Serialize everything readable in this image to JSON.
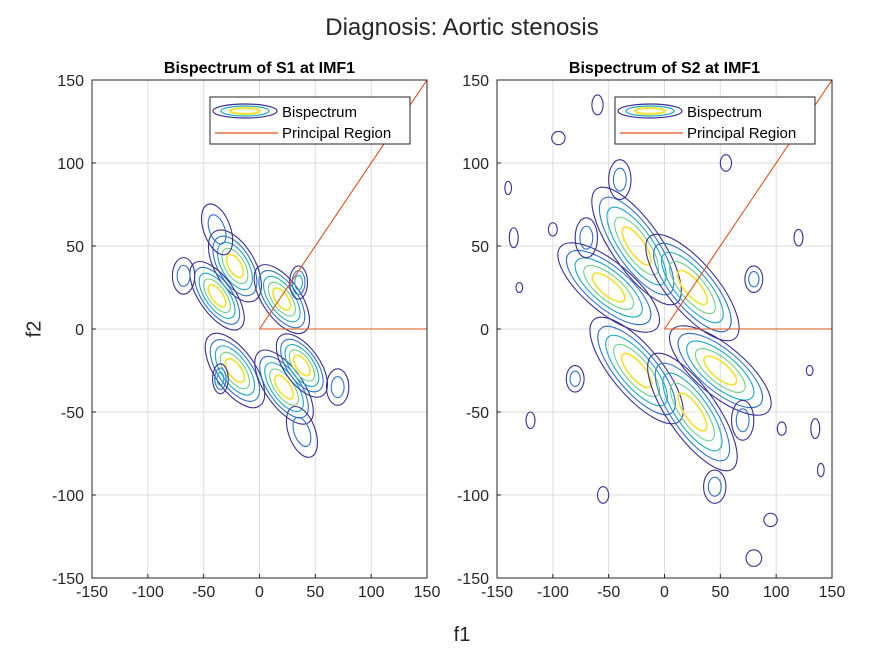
{
  "figure": {
    "suptitle": "Diagnosis: Aortic stenosis",
    "xlabel": "f1",
    "ylabel": "f2"
  },
  "colors": {
    "contour_levels": [
      "#3b2e95",
      "#2f73c7",
      "#19a8c4",
      "#6cd086",
      "#f4e23b"
    ],
    "principal_region": "#d95319",
    "grid": "#dcdcdc",
    "axis": "#262626"
  },
  "chart_data": [
    {
      "type": "contour",
      "title": "Bispectrum of S1 at IMF1",
      "xlim": [
        -150,
        150
      ],
      "ylim": [
        -150,
        150
      ],
      "xticks": [
        -150,
        -100,
        -50,
        0,
        50,
        100,
        150
      ],
      "yticks": [
        -150,
        -100,
        -50,
        0,
        50,
        100,
        150
      ],
      "grid": true,
      "legend": {
        "location": "top-right",
        "entries": [
          "Bispectrum",
          "Principal Region"
        ]
      },
      "principal_region": {
        "diagonal": [
          [
            0,
            0
          ],
          [
            150,
            150
          ]
        ],
        "horizontal": [
          [
            0,
            0
          ],
          [
            150,
            0
          ]
        ]
      },
      "blobs": [
        {
          "x": -22,
          "y": 38,
          "rx": 18,
          "ry": 24,
          "rot": -30,
          "levels": 5
        },
        {
          "x": -38,
          "y": 20,
          "rx": 16,
          "ry": 24,
          "rot": -35,
          "levels": 5
        },
        {
          "x": 20,
          "y": 18,
          "rx": 17,
          "ry": 24,
          "rot": -35,
          "levels": 5
        },
        {
          "x": 35,
          "y": 28,
          "rx": 8,
          "ry": 10,
          "rot": 0,
          "levels": 3
        },
        {
          "x": -22,
          "y": -25,
          "rx": 18,
          "ry": 26,
          "rot": -35,
          "levels": 5
        },
        {
          "x": 22,
          "y": -35,
          "rx": 17,
          "ry": 26,
          "rot": -35,
          "levels": 5
        },
        {
          "x": 38,
          "y": -22,
          "rx": 16,
          "ry": 22,
          "rot": -35,
          "levels": 5
        },
        {
          "x": -35,
          "y": -30,
          "rx": 7,
          "ry": 9,
          "rot": 0,
          "levels": 3
        },
        {
          "x": -38,
          "y": 60,
          "rx": 12,
          "ry": 16,
          "rot": -20,
          "levels": 2
        },
        {
          "x": 38,
          "y": -62,
          "rx": 12,
          "ry": 16,
          "rot": -20,
          "levels": 2
        },
        {
          "x": -68,
          "y": 32,
          "rx": 10,
          "ry": 11,
          "rot": 0,
          "levels": 2
        },
        {
          "x": 70,
          "y": -35,
          "rx": 10,
          "ry": 11,
          "rot": 0,
          "levels": 2
        }
      ]
    },
    {
      "type": "contour",
      "title": "Bispectrum of S2 at IMF1",
      "xlim": [
        -150,
        150
      ],
      "ylim": [
        -150,
        150
      ],
      "xticks": [
        -150,
        -100,
        -50,
        0,
        50,
        100,
        150
      ],
      "yticks": [
        -150,
        -100,
        -50,
        0,
        50,
        100,
        150
      ],
      "grid": true,
      "legend": {
        "location": "top-right",
        "entries": [
          "Bispectrum",
          "Principal Region"
        ]
      },
      "principal_region": {
        "diagonal": [
          [
            0,
            0
          ],
          [
            150,
            150
          ]
        ],
        "horizontal": [
          [
            0,
            0
          ],
          [
            150,
            0
          ]
        ]
      },
      "blobs": [
        {
          "x": -25,
          "y": 50,
          "rx": 22,
          "ry": 42,
          "rot": -35,
          "levels": 5
        },
        {
          "x": -50,
          "y": 25,
          "rx": 22,
          "ry": 38,
          "rot": -50,
          "levels": 5
        },
        {
          "x": 25,
          "y": 25,
          "rx": 22,
          "ry": 40,
          "rot": -40,
          "levels": 5
        },
        {
          "x": -25,
          "y": -25,
          "rx": 22,
          "ry": 40,
          "rot": -40,
          "levels": 5
        },
        {
          "x": 50,
          "y": -25,
          "rx": 22,
          "ry": 38,
          "rot": -50,
          "levels": 5
        },
        {
          "x": 25,
          "y": -50,
          "rx": 22,
          "ry": 42,
          "rot": -35,
          "levels": 5
        },
        {
          "x": -70,
          "y": 55,
          "rx": 10,
          "ry": 12,
          "rot": 0,
          "levels": 2
        },
        {
          "x": 70,
          "y": -55,
          "rx": 10,
          "ry": 12,
          "rot": 0,
          "levels": 2
        },
        {
          "x": -40,
          "y": 90,
          "rx": 10,
          "ry": 12,
          "rot": 0,
          "levels": 2
        },
        {
          "x": 45,
          "y": -95,
          "rx": 10,
          "ry": 10,
          "rot": 0,
          "levels": 2
        },
        {
          "x": -80,
          "y": -30,
          "rx": 8,
          "ry": 8,
          "rot": 0,
          "levels": 2
        },
        {
          "x": 80,
          "y": 30,
          "rx": 8,
          "ry": 8,
          "rot": 0,
          "levels": 2
        },
        {
          "x": -135,
          "y": 55,
          "rx": 4,
          "ry": 6,
          "rot": 0,
          "levels": 1
        },
        {
          "x": 135,
          "y": -60,
          "rx": 4,
          "ry": 6,
          "rot": 0,
          "levels": 1
        },
        {
          "x": -140,
          "y": 85,
          "rx": 3,
          "ry": 4,
          "rot": 0,
          "levels": 1
        },
        {
          "x": 140,
          "y": -85,
          "rx": 3,
          "ry": 4,
          "rot": 0,
          "levels": 1
        },
        {
          "x": -95,
          "y": 115,
          "rx": 6,
          "ry": 4,
          "rot": 0,
          "levels": 1
        },
        {
          "x": 95,
          "y": -115,
          "rx": 6,
          "ry": 4,
          "rot": 0,
          "levels": 1
        },
        {
          "x": -60,
          "y": 135,
          "rx": 5,
          "ry": 6,
          "rot": 0,
          "levels": 1
        },
        {
          "x": 80,
          "y": -138,
          "rx": 7,
          "ry": 5,
          "rot": 0,
          "levels": 1
        },
        {
          "x": -130,
          "y": 25,
          "rx": 3,
          "ry": 3,
          "rot": 0,
          "levels": 1
        },
        {
          "x": 130,
          "y": -25,
          "rx": 3,
          "ry": 3,
          "rot": 0,
          "levels": 1
        },
        {
          "x": 120,
          "y": 55,
          "rx": 4,
          "ry": 5,
          "rot": 0,
          "levels": 1
        },
        {
          "x": -120,
          "y": -55,
          "rx": 4,
          "ry": 5,
          "rot": 0,
          "levels": 1
        },
        {
          "x": 55,
          "y": 100,
          "rx": 5,
          "ry": 5,
          "rot": 0,
          "levels": 1
        },
        {
          "x": -55,
          "y": -100,
          "rx": 5,
          "ry": 5,
          "rot": 0,
          "levels": 1
        },
        {
          "x": 105,
          "y": -60,
          "rx": 4,
          "ry": 4,
          "rot": 0,
          "levels": 1
        },
        {
          "x": -100,
          "y": 60,
          "rx": 4,
          "ry": 4,
          "rot": 0,
          "levels": 1
        }
      ]
    }
  ]
}
